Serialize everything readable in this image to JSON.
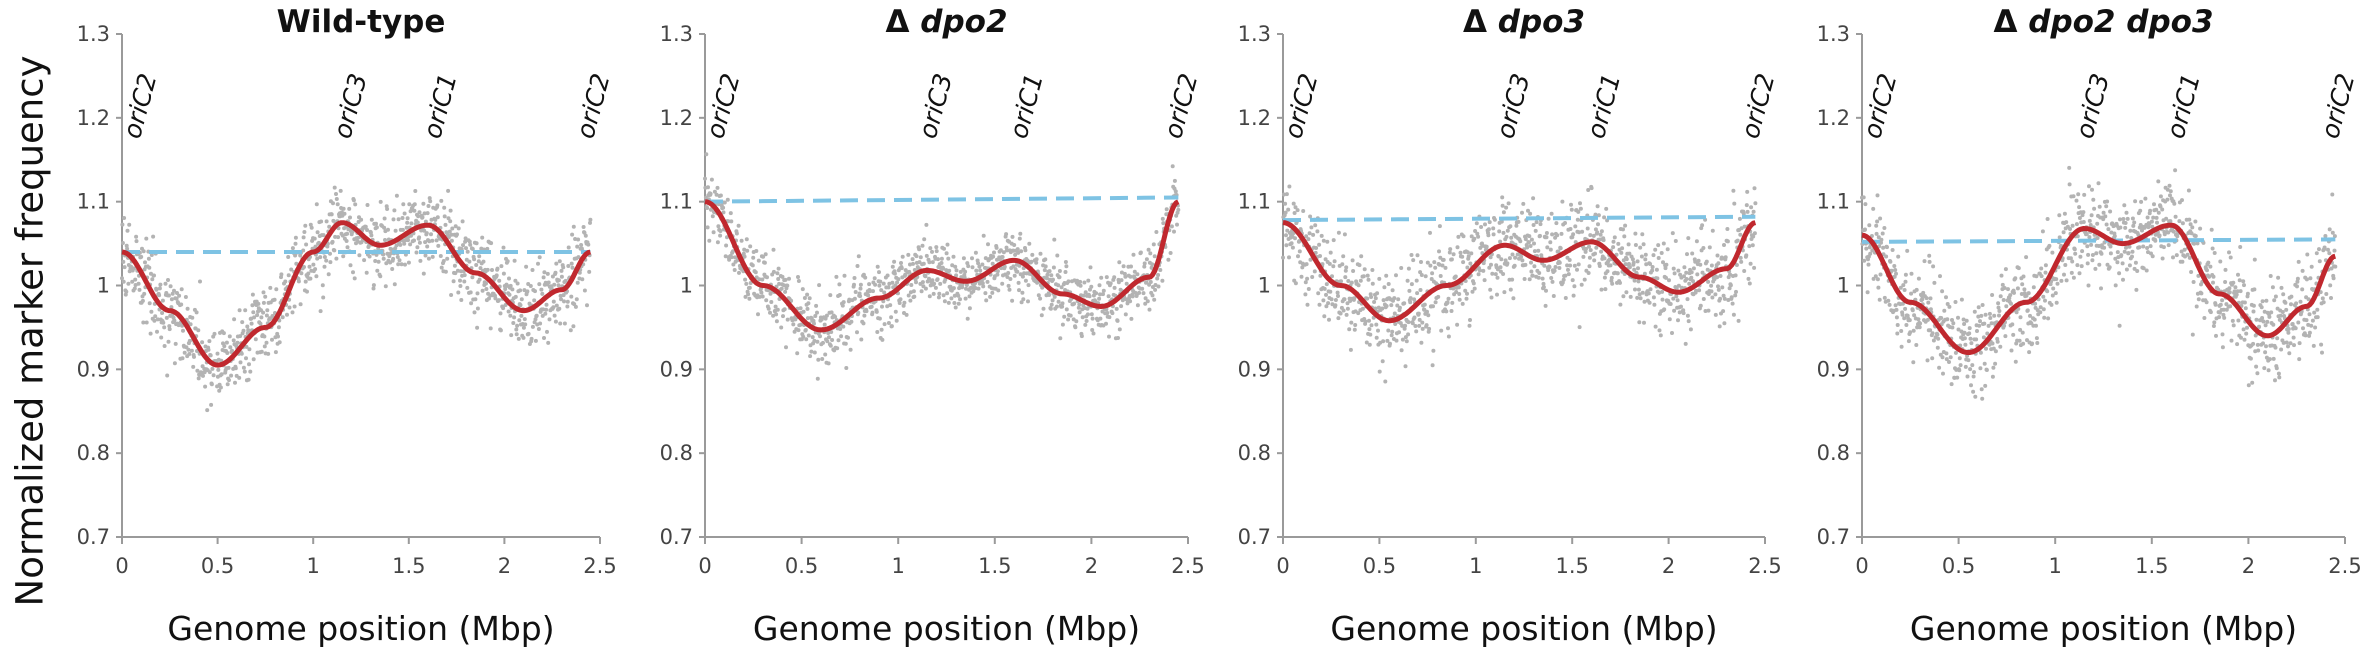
{
  "figure": {
    "ylabel": "Normalized marker frequency",
    "colors": {
      "points": "#b3b3b3",
      "fit": "#c0282e",
      "baseline": "#7ec3e4",
      "axis": "#9a9a9a"
    }
  },
  "chart_data": [
    {
      "type": "scatter",
      "title_prefix": "",
      "title_italic": "Wild-type",
      "xlabel": "Genome position (Mbp)",
      "ylabel": "Normalized marker frequency",
      "xlim": [
        0,
        2.5
      ],
      "ylim": [
        0.7,
        1.3
      ],
      "xticks": [
        "0",
        "0.5",
        "1",
        "1.5",
        "2",
        "2.5"
      ],
      "yticks": [
        "0.7",
        "0.8",
        "0.9",
        "1",
        "1.1",
        "1.2",
        "1.3"
      ],
      "origins": [
        {
          "label": "oriC2",
          "x": 0.05
        },
        {
          "label": "oriC3",
          "x": 1.15
        },
        {
          "label": "oriC1",
          "x": 1.62
        },
        {
          "label": "oriC2",
          "x": 2.42
        }
      ],
      "fit_line": {
        "x": [
          0,
          0.25,
          0.5,
          0.75,
          1.0,
          1.15,
          1.35,
          1.6,
          1.85,
          2.1,
          2.3,
          2.45
        ],
        "y": [
          1.04,
          0.97,
          0.905,
          0.95,
          1.04,
          1.075,
          1.048,
          1.072,
          1.015,
          0.97,
          0.995,
          1.04
        ]
      },
      "baseline": {
        "x": [
          0,
          2.45
        ],
        "y": [
          1.04,
          1.04
        ]
      },
      "scatter_noise": 0.025
    },
    {
      "type": "scatter",
      "title_prefix": "Δ",
      "title_italic": "dpo2",
      "xlabel": "Genome position (Mbp)",
      "ylabel": "Normalized marker frequency",
      "xlim": [
        0,
        2.5
      ],
      "ylim": [
        0.7,
        1.3
      ],
      "xticks": [
        "0",
        "0.5",
        "1",
        "1.5",
        "2",
        "2.5"
      ],
      "yticks": [
        "0.7",
        "0.8",
        "0.9",
        "1",
        "1.1",
        "1.2",
        "1.3"
      ],
      "origins": [
        {
          "label": "oriC2",
          "x": 0.05
        },
        {
          "label": "oriC3",
          "x": 1.15
        },
        {
          "label": "oriC1",
          "x": 1.62
        },
        {
          "label": "oriC2",
          "x": 2.42
        }
      ],
      "fit_line": {
        "x": [
          0,
          0.3,
          0.6,
          0.9,
          1.15,
          1.35,
          1.6,
          1.85,
          2.05,
          2.3,
          2.45
        ],
        "y": [
          1.1,
          1.0,
          0.947,
          0.985,
          1.018,
          1.005,
          1.03,
          0.99,
          0.975,
          1.01,
          1.1
        ]
      },
      "baseline": {
        "x": [
          0,
          2.45
        ],
        "y": [
          1.1,
          1.105
        ]
      },
      "scatter_noise": 0.02
    },
    {
      "type": "scatter",
      "title_prefix": "Δ",
      "title_italic": "dpo3",
      "xlabel": "Genome position (Mbp)",
      "ylabel": "Normalized marker frequency",
      "xlim": [
        0,
        2.5
      ],
      "ylim": [
        0.7,
        1.3
      ],
      "xticks": [
        "0",
        "0.5",
        "1",
        "1.5",
        "2",
        "2.5"
      ],
      "yticks": [
        "0.7",
        "0.8",
        "0.9",
        "1",
        "1.1",
        "1.2",
        "1.3"
      ],
      "origins": [
        {
          "label": "oriC2",
          "x": 0.05
        },
        {
          "label": "oriC3",
          "x": 1.15
        },
        {
          "label": "oriC1",
          "x": 1.62
        },
        {
          "label": "oriC2",
          "x": 2.42
        }
      ],
      "fit_line": {
        "x": [
          0,
          0.3,
          0.55,
          0.85,
          1.15,
          1.35,
          1.6,
          1.85,
          2.05,
          2.3,
          2.45
        ],
        "y": [
          1.075,
          1.0,
          0.958,
          1.0,
          1.048,
          1.03,
          1.052,
          1.01,
          0.992,
          1.02,
          1.075
        ]
      },
      "baseline": {
        "x": [
          0,
          2.45
        ],
        "y": [
          1.078,
          1.082
        ]
      },
      "scatter_noise": 0.028
    },
    {
      "type": "scatter",
      "title_prefix": "Δ",
      "title_italic": "dpo2 dpo3",
      "xlabel": "Genome position (Mbp)",
      "ylabel": "Normalized marker frequency",
      "xlim": [
        0,
        2.5
      ],
      "ylim": [
        0.7,
        1.3
      ],
      "xticks": [
        "0",
        "0.5",
        "1",
        "1.5",
        "2",
        "2.5"
      ],
      "yticks": [
        "0.7",
        "0.8",
        "0.9",
        "1",
        "1.1",
        "1.2",
        "1.3"
      ],
      "origins": [
        {
          "label": "oriC2",
          "x": 0.05
        },
        {
          "label": "oriC3",
          "x": 1.15
        },
        {
          "label": "oriC1",
          "x": 1.62
        },
        {
          "label": "oriC2",
          "x": 2.42
        }
      ],
      "fit_line": {
        "x": [
          0,
          0.25,
          0.55,
          0.85,
          1.15,
          1.35,
          1.6,
          1.85,
          2.1,
          2.3,
          2.45
        ],
        "y": [
          1.06,
          0.98,
          0.92,
          0.98,
          1.068,
          1.05,
          1.072,
          0.99,
          0.94,
          0.975,
          1.035
        ]
      },
      "baseline": {
        "x": [
          0,
          2.45
        ],
        "y": [
          1.052,
          1.055
        ]
      },
      "scatter_noise": 0.028
    }
  ]
}
